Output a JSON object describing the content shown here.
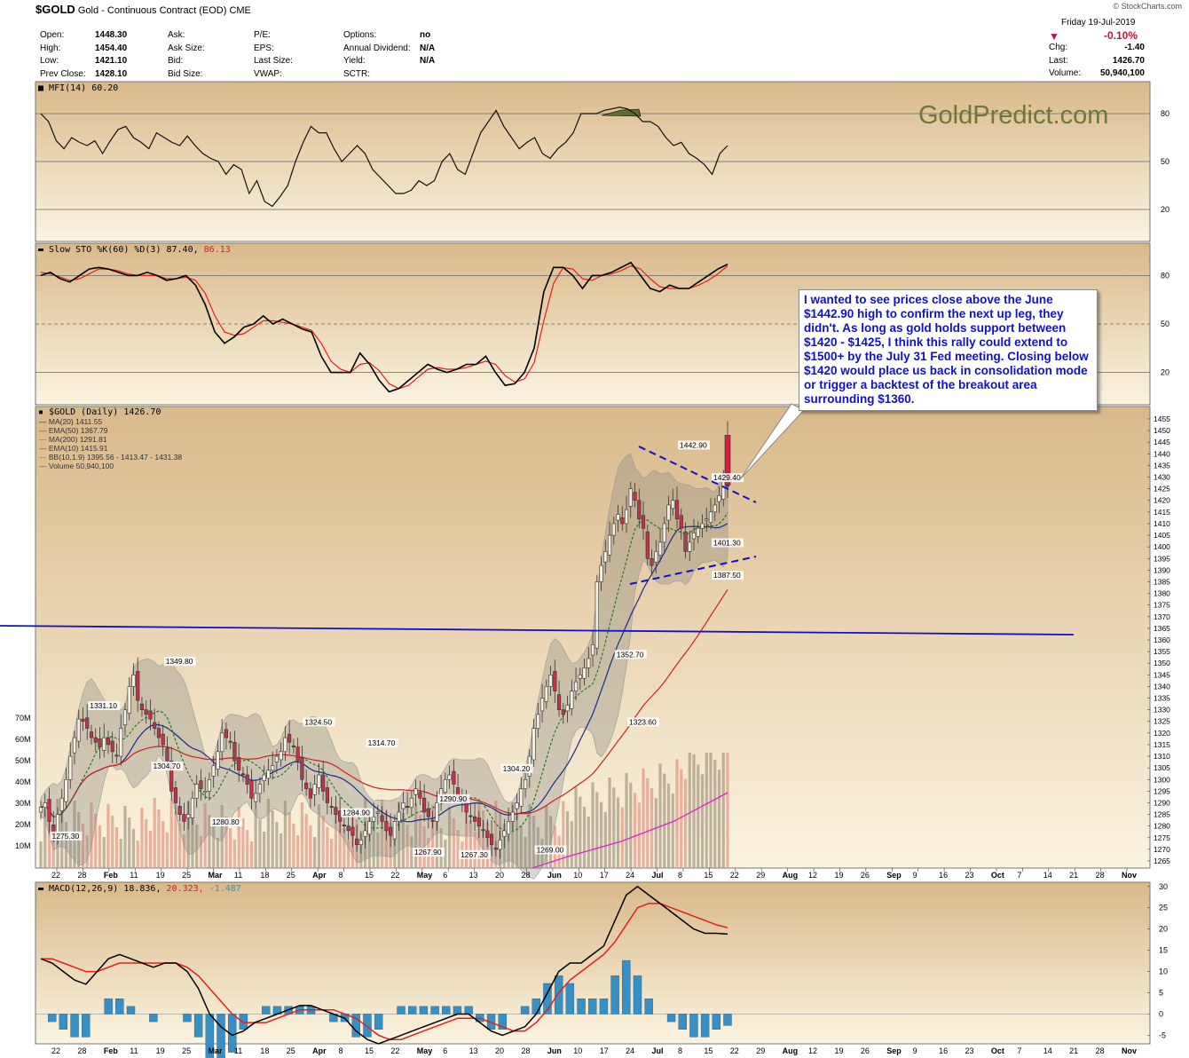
{
  "header": {
    "symbol": "$GOLD",
    "name": "Gold - Continuous Contract (EOD)",
    "exchange": "CME",
    "date": "Friday  19-Jul-2019",
    "change_pct": "-0.10%",
    "arrow": "▼",
    "logo": "© StockCharts.com",
    "quote_rows": [
      {
        "k1": "Open:",
        "v1": "1448.30",
        "k2": "Ask:",
        "v2": "",
        "k3": "P/E:",
        "v3": "",
        "k4": "Options:",
        "v4": "no"
      },
      {
        "k1": "High:",
        "v1": "1454.40",
        "k2": "Ask Size:",
        "v2": "",
        "k3": "EPS:",
        "v3": "",
        "k4": "Annual Dividend:",
        "v4": "N/A"
      },
      {
        "k1": "Low:",
        "v1": "1421.10",
        "k2": "Bid:",
        "v2": "",
        "k3": "Last Size:",
        "v3": "",
        "k4": "Yield:",
        "v4": "N/A"
      },
      {
        "k1": "Prev Close:",
        "v1": "1428.10",
        "k2": "Bid Size:",
        "v2": "",
        "k3": "VWAP:",
        "v3": "",
        "k4": "SCTR:",
        "v4": ""
      }
    ],
    "right_rows": [
      {
        "k": "Chg:",
        "v": "-1.40"
      },
      {
        "k": "Last:",
        "v": "1426.70"
      },
      {
        "k": "Volume:",
        "v": "50,940,100"
      }
    ]
  },
  "watermark": "GoldPredict.com",
  "annotation": "I wanted to see prices close above the June $1442.90 high to confirm the next up leg, they didn't. As long as gold holds support between $1420 - $1425, I think this rally could extend to $1500+ by the July 31 Fed meeting. Closing below $1420 would place us back in consolidation mode or trigger a backtest of the breakout area surrounding $1360.",
  "panels": {
    "mfi_label": "MFI(14) 60.20",
    "sto_label": "Slow STO %K(60) %D(3) 87.40,",
    "sto_label2": "86.13",
    "price_label": "$GOLD (Daily) 1426.70",
    "macd_label": "MACD(12,26,9) 18.836,",
    "macd_label2": "20.323,",
    "macd_label3": "-1.487"
  },
  "legend": [
    {
      "text": "MA(20) 1411.55",
      "color": "#1a2a8a"
    },
    {
      "text": "EMA(50) 1367.79",
      "color": "#cc2222"
    },
    {
      "text": "MA(200) 1291.81",
      "color": "#dd22cc"
    },
    {
      "text": "EMA(10) 1415.91",
      "color": "#227722"
    },
    {
      "text": "BB(10,1.9) 1395.56 - 1413.47 - 1431.38",
      "color": "#777777"
    },
    {
      "text": "Volume 50,940,100",
      "color": "#555555"
    }
  ],
  "colors": {
    "up": "#9a9a8a",
    "down": "#c0334a",
    "bg_top": "#d9b98a",
    "bg_bottom": "#fbf4e0",
    "annot_text": "#1010d0"
  },
  "chart_data": [
    {
      "type": "line",
      "name": "MFI(14)",
      "ylim": [
        0,
        100
      ],
      "ticks": [
        20,
        50,
        80
      ],
      "values": [
        80,
        75,
        63,
        58,
        65,
        62,
        60,
        63,
        55,
        63,
        70,
        72,
        65,
        62,
        58,
        68,
        65,
        62,
        60,
        66,
        60,
        55,
        52,
        50,
        42,
        48,
        45,
        30,
        38,
        25,
        22,
        28,
        35,
        50,
        62,
        72,
        68,
        68,
        58,
        50,
        55,
        60,
        55,
        45,
        40,
        35,
        30,
        30,
        32,
        38,
        35,
        38,
        50,
        55,
        45,
        42,
        55,
        68,
        75,
        82,
        72,
        65,
        58,
        62,
        65,
        55,
        52,
        58,
        62,
        68,
        80,
        80,
        80,
        82,
        83,
        84,
        83,
        80,
        75,
        75,
        72,
        65,
        60,
        62,
        55,
        52,
        48,
        42,
        55,
        60
      ]
    },
    {
      "type": "line",
      "name": "Slow STO",
      "ylim": [
        0,
        100
      ],
      "ticks": [
        20,
        50,
        80
      ],
      "k": [
        80,
        82,
        78,
        76,
        80,
        84,
        85,
        84,
        82,
        80,
        80,
        82,
        80,
        77,
        78,
        80,
        74,
        62,
        45,
        38,
        42,
        48,
        50,
        55,
        50,
        53,
        50,
        47,
        45,
        30,
        20,
        20,
        20,
        32,
        25,
        15,
        8,
        10,
        15,
        20,
        25,
        22,
        20,
        22,
        25,
        25,
        30,
        20,
        12,
        13,
        20,
        35,
        70,
        85,
        85,
        80,
        72,
        80,
        80,
        82,
        85,
        88,
        80,
        72,
        70,
        74,
        72,
        72,
        76,
        80,
        84,
        87
      ],
      "d": [
        82,
        81,
        79,
        77,
        78,
        81,
        84,
        84,
        83,
        81,
        80,
        80,
        80,
        78,
        78,
        79,
        77,
        69,
        55,
        45,
        43,
        44,
        48,
        52,
        52,
        51,
        50,
        48,
        46,
        38,
        27,
        22,
        20,
        25,
        26,
        21,
        13,
        10,
        12,
        17,
        22,
        23,
        22,
        22,
        23,
        25,
        27,
        25,
        18,
        14,
        16,
        26,
        52,
        75,
        85,
        84,
        78,
        77,
        80,
        81,
        83,
        86,
        84,
        78,
        73,
        72,
        72,
        72,
        74,
        77,
        81,
        86
      ]
    },
    {
      "type": "candlestick",
      "name": "$GOLD (Daily)",
      "ylim": [
        1265,
        1455
      ],
      "y_ticks": [
        1265,
        1270,
        1275,
        1280,
        1285,
        1290,
        1295,
        1300,
        1305,
        1310,
        1315,
        1320,
        1325,
        1330,
        1335,
        1340,
        1345,
        1350,
        1355,
        1360,
        1365,
        1370,
        1375,
        1380,
        1385,
        1390,
        1395,
        1400,
        1405,
        1410,
        1415,
        1420,
        1425,
        1430,
        1435,
        1440,
        1445,
        1450,
        1455
      ],
      "vol_ticks": [
        "10M",
        "20M",
        "30M",
        "40M",
        "50M",
        "60M",
        "70M"
      ],
      "closes": [
        1288,
        1290,
        1282,
        1276,
        1285,
        1292,
        1300,
        1310,
        1318,
        1326,
        1325,
        1322,
        1318,
        1316,
        1314,
        1318,
        1315,
        1312,
        1310,
        1322,
        1330,
        1340,
        1345,
        1334,
        1330,
        1328,
        1326,
        1322,
        1318,
        1315,
        1308,
        1295,
        1290,
        1285,
        1282,
        1285,
        1292,
        1298,
        1296,
        1295,
        1300,
        1306,
        1312,
        1320,
        1318,
        1316,
        1308,
        1304,
        1302,
        1298,
        1292,
        1294,
        1298,
        1302,
        1304,
        1306,
        1310,
        1312,
        1318,
        1316,
        1314,
        1308,
        1300,
        1296,
        1292,
        1298,
        1302,
        1295,
        1290,
        1288,
        1285,
        1282,
        1280,
        1278,
        1276,
        1272,
        1274,
        1278,
        1282,
        1284,
        1286,
        1282,
        1278,
        1276,
        1282,
        1286,
        1290,
        1288,
        1292,
        1296,
        1292,
        1286,
        1284,
        1282,
        1290,
        1296,
        1300,
        1302,
        1298,
        1293,
        1290,
        1286,
        1284,
        1282,
        1280,
        1278,
        1275,
        1272,
        1270,
        1274,
        1278,
        1282,
        1286,
        1290,
        1296,
        1300,
        1310,
        1322,
        1328,
        1335,
        1340,
        1345,
        1338,
        1330,
        1328,
        1332,
        1338,
        1342,
        1345,
        1348,
        1352,
        1358,
        1385,
        1392,
        1398,
        1405,
        1410,
        1414,
        1410,
        1416,
        1425,
        1420,
        1412,
        1408,
        1395,
        1392,
        1398,
        1402,
        1410,
        1418,
        1420,
        1412,
        1408,
        1398,
        1402,
        1406,
        1408,
        1410,
        1412,
        1415,
        1418,
        1422,
        1428,
        1426
      ],
      "labels": [
        {
          "text": "1331.10",
          "x": 15,
          "y": 1331
        },
        {
          "text": "1275.30",
          "x": 6,
          "y": 1275
        },
        {
          "text": "1349.80",
          "x": 33,
          "y": 1350
        },
        {
          "text": "1304.70",
          "x": 30,
          "y": 1305
        },
        {
          "text": "1280.80",
          "x": 44,
          "y": 1281
        },
        {
          "text": "1324.50",
          "x": 66,
          "y": 1324
        },
        {
          "text": "1284.90",
          "x": 75,
          "y": 1285
        },
        {
          "text": "1314.70",
          "x": 81,
          "y": 1315
        },
        {
          "text": "1267.90",
          "x": 92,
          "y": 1268
        },
        {
          "text": "1290.90",
          "x": 98,
          "y": 1291
        },
        {
          "text": "1267.30",
          "x": 103,
          "y": 1267
        },
        {
          "text": "1304.20",
          "x": 113,
          "y": 1304
        },
        {
          "text": "1269.00",
          "x": 121,
          "y": 1269
        },
        {
          "text": "1352.70",
          "x": 140,
          "y": 1353
        },
        {
          "text": "1323.60",
          "x": 143,
          "y": 1324
        },
        {
          "text": "1442.90",
          "x": 155,
          "y": 1443
        },
        {
          "text": "1429.40",
          "x": 166,
          "y": 1429
        },
        {
          "text": "1387.50",
          "x": 166,
          "y": 1387
        },
        {
          "text": "1401.30",
          "x": 173,
          "y": 1401
        }
      ]
    },
    {
      "type": "line",
      "name": "MACD(12,26,9)",
      "ylim": [
        -7,
        31
      ],
      "y_ticks": [
        -5,
        0,
        5,
        10,
        15,
        20,
        25,
        30
      ],
      "x_labels": [
        "22",
        "28",
        "Feb",
        "11",
        "19",
        "25",
        "Mar",
        "11",
        "18",
        "25",
        "Apr",
        "8",
        "15",
        "22",
        "May",
        "6",
        "13",
        "20",
        "28",
        "Jun",
        "10",
        "17",
        "24",
        "Jul",
        "8",
        "15",
        "22",
        "29",
        "Aug",
        "12",
        "19",
        "26",
        "Sep",
        "9",
        "16",
        "23",
        "Oct",
        "7",
        "14",
        "21",
        "28",
        "Nov"
      ],
      "macd": [
        13,
        12,
        10,
        8,
        7,
        10,
        13,
        14,
        13,
        12,
        11,
        12,
        12,
        10,
        6,
        0,
        -3,
        -5,
        -4,
        -2,
        -1,
        0,
        1,
        2,
        2,
        1,
        0,
        -1,
        -4,
        -6,
        -7,
        -6,
        -5,
        -4,
        -3,
        -2,
        -1,
        0,
        0,
        -2,
        -4,
        -5,
        -4,
        -3,
        0,
        5,
        10,
        12,
        12,
        14,
        16,
        22,
        28,
        30,
        28,
        26,
        24,
        22,
        20,
        19,
        19,
        18.8
      ],
      "signal": [
        13,
        13,
        12,
        11,
        10,
        10,
        11,
        12,
        12,
        12,
        12,
        12,
        12,
        11,
        9,
        6,
        3,
        0,
        -2,
        -2,
        -2,
        -1,
        0,
        1,
        1,
        1,
        1,
        0,
        -1,
        -3,
        -5,
        -6,
        -6,
        -5,
        -4,
        -3,
        -2,
        -1,
        -1,
        -1,
        -2,
        -3,
        -4,
        -4,
        -2,
        1,
        5,
        8,
        10,
        12,
        14,
        17,
        21,
        25,
        26,
        26,
        25,
        24,
        23,
        22,
        21,
        20.3
      ]
    }
  ]
}
